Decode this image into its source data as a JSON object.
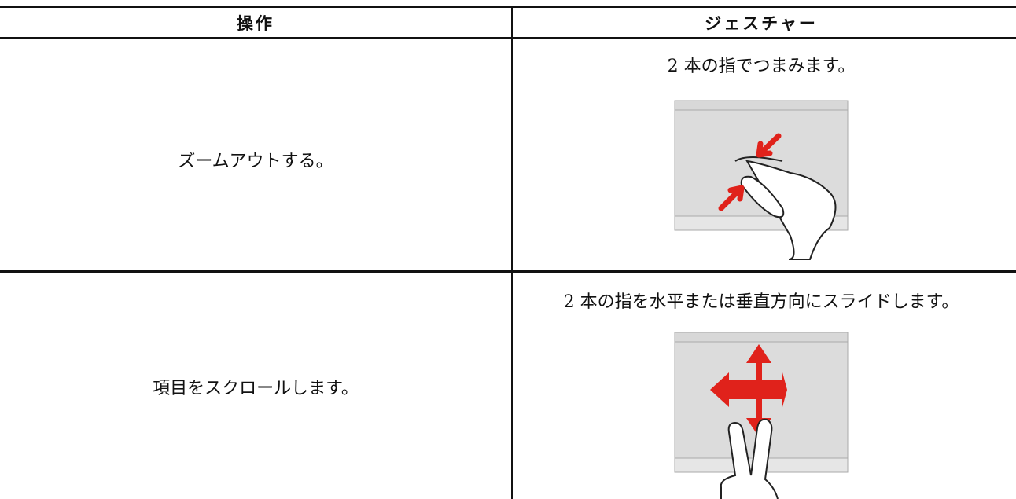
{
  "table": {
    "headers": [
      "操作",
      "ジェスチャー"
    ],
    "rows": [
      [
        "ズームアウトする。",
        "2 本の指でつまみます。"
      ],
      [
        "項目をスクロールします。",
        "2 本の指を水平または垂直方向にスライドします。"
      ]
    ]
  }
}
